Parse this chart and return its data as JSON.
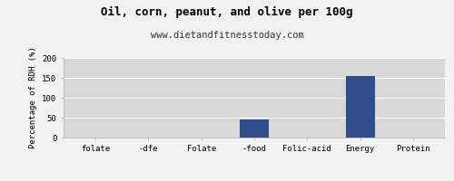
{
  "title": "Oil, corn, peanut, and olive per 100g",
  "subtitle": "www.dietandfitnesstoday.com",
  "ylabel": "Percentage of RDH (%)",
  "categories": [
    "folate",
    "-dfe",
    "Folate",
    "-food",
    "Folic-acid",
    "Energy",
    "Protein"
  ],
  "values": [
    0,
    0,
    0,
    45,
    0,
    155,
    0
  ],
  "bar_color": "#2e4d8a",
  "ylim": [
    0,
    200
  ],
  "yticks": [
    0,
    50,
    100,
    150,
    200
  ],
  "fig_bg_color": "#f2f2f2",
  "plot_bg_color": "#d8d8d8",
  "title_fontsize": 9,
  "subtitle_fontsize": 7.5,
  "ylabel_fontsize": 6.5,
  "tick_fontsize": 6.5,
  "grid_color": "#ffffff",
  "font_family": "monospace"
}
